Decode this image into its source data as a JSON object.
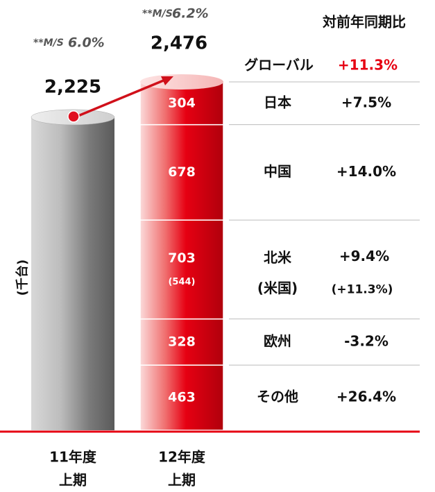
{
  "chart_data": {
    "type": "stacked_bar",
    "y_label": "(千台)",
    "growth_header": "対前年同期比",
    "categories": [
      [
        "11年度",
        "上期"
      ],
      [
        "12年度",
        "上期"
      ]
    ],
    "totals": [
      2225,
      2476
    ],
    "total_labels": [
      "2,225",
      "2,476"
    ],
    "bar_colors": [
      "#7a7a7a",
      "#e60012"
    ],
    "ms_prefix": "**M/S",
    "ms": [
      6.0,
      6.2
    ],
    "ms_labels": [
      "6.0%",
      "6.2%"
    ],
    "global": {
      "name": "グローバル",
      "growth": "+11.3%"
    },
    "segments": [
      {
        "name": "日本",
        "value": 304,
        "growth": "+7.5%"
      },
      {
        "name": "中国",
        "value": 678,
        "growth": "+14.0%"
      },
      {
        "name": "北米",
        "value": 703,
        "growth": "+9.4%",
        "sub_value": "(544)",
        "sub_name": "(米国)",
        "sub_growth": "(+11.3%)"
      },
      {
        "name": "欧州",
        "value": 328,
        "growth": "-3.2%"
      },
      {
        "name": "その他",
        "value": 463,
        "growth": "+26.4%"
      }
    ]
  }
}
